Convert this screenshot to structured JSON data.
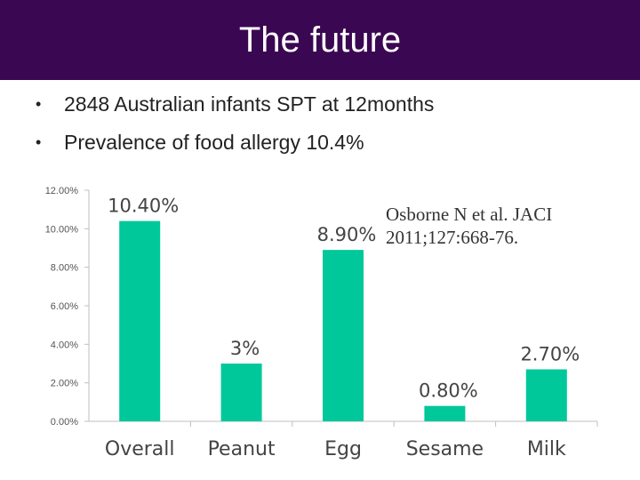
{
  "slide": {
    "title": "The future",
    "bullets": [
      "2848 Australian infants SPT at 12months",
      "Prevalence of food allergy 10.4%"
    ],
    "citation_line1": "Osborne N et al. JACI",
    "citation_line2": "2011;127:668-76."
  },
  "chart_data": {
    "type": "bar",
    "categories": [
      "Overall",
      "Peanut",
      "Egg",
      "Sesame",
      "Milk"
    ],
    "values": [
      10.4,
      3.0,
      8.9,
      0.8,
      2.7
    ],
    "data_labels": [
      "10.40%",
      "3%",
      "8.90%",
      "0.80%",
      "2.70%"
    ],
    "ytick_labels": [
      "0.00%",
      "2.00%",
      "4.00%",
      "6.00%",
      "8.00%",
      "10.00%",
      "12.00%"
    ],
    "ylim": [
      0,
      12
    ],
    "ytick_step": 2,
    "grid": false,
    "bar_color": "#00c89a",
    "title": "",
    "xlabel": "",
    "ylabel": ""
  }
}
